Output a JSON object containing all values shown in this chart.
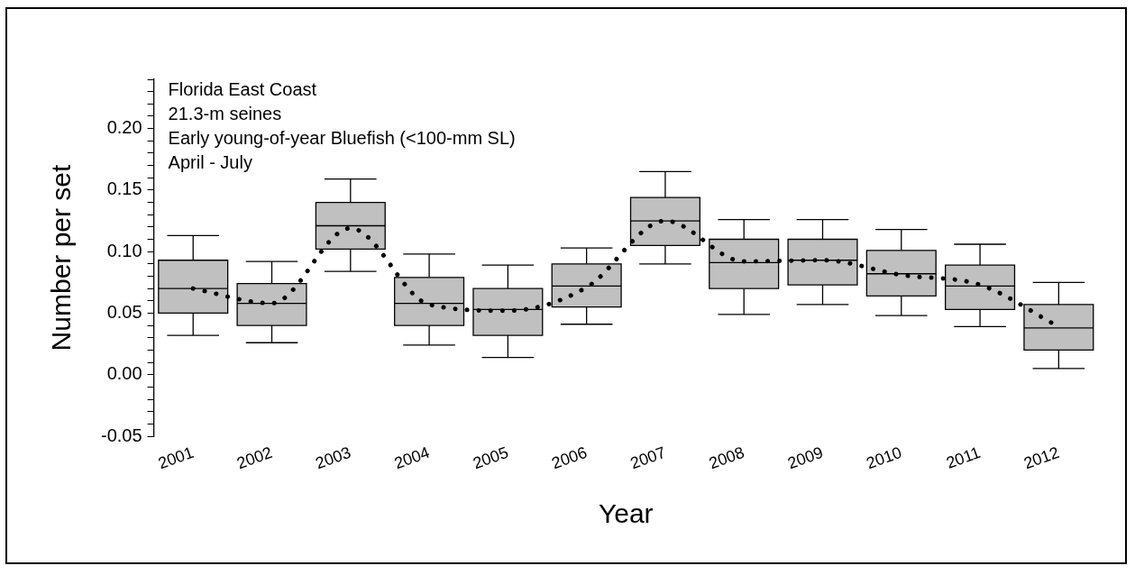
{
  "chart_data": {
    "type": "box",
    "xlabel": "Year",
    "ylabel": "Number per set",
    "annotations": [
      "Florida East Coast",
      "21.3-m seines",
      "Early young-of-year Bluefish (<100-mm SL)",
      "April - July"
    ],
    "categories": [
      "2001",
      "2002",
      "2003",
      "2004",
      "2005",
      "2006",
      "2007",
      "2008",
      "2009",
      "2010",
      "2011",
      "2012"
    ],
    "color": "#c0c0c0",
    "boxes": [
      {
        "low": 0.032,
        "q1": 0.05,
        "median": 0.07,
        "q3": 0.093,
        "high": 0.113
      },
      {
        "low": 0.026,
        "q1": 0.04,
        "median": 0.058,
        "q3": 0.074,
        "high": 0.092
      },
      {
        "low": 0.084,
        "q1": 0.102,
        "median": 0.121,
        "q3": 0.14,
        "high": 0.159
      },
      {
        "low": 0.024,
        "q1": 0.04,
        "median": 0.058,
        "q3": 0.079,
        "high": 0.098
      },
      {
        "low": 0.014,
        "q1": 0.032,
        "median": 0.053,
        "q3": 0.07,
        "high": 0.089
      },
      {
        "low": 0.041,
        "q1": 0.055,
        "median": 0.072,
        "q3": 0.09,
        "high": 0.103
      },
      {
        "low": 0.09,
        "q1": 0.105,
        "median": 0.125,
        "q3": 0.144,
        "high": 0.165
      },
      {
        "low": 0.049,
        "q1": 0.07,
        "median": 0.091,
        "q3": 0.11,
        "high": 0.126
      },
      {
        "low": 0.057,
        "q1": 0.073,
        "median": 0.093,
        "q3": 0.11,
        "high": 0.126
      },
      {
        "low": 0.048,
        "q1": 0.064,
        "median": 0.082,
        "q3": 0.101,
        "high": 0.118
      },
      {
        "low": 0.039,
        "q1": 0.053,
        "median": 0.072,
        "q3": 0.089,
        "high": 0.106
      },
      {
        "low": 0.005,
        "q1": 0.02,
        "median": 0.038,
        "q3": 0.057,
        "high": 0.075
      }
    ],
    "series": [
      {
        "type": "line",
        "color": "#000000",
        "line_style": "dotted",
        "marker": "none",
        "values": [
          0.07,
          0.058,
          0.119,
          0.057,
          0.052,
          0.071,
          0.125,
          0.092,
          0.093,
          0.081,
          0.073,
          0.039
        ]
      }
    ],
    "ylim": [
      -0.05,
      0.24
    ],
    "yticks": [
      {
        "value": -0.05,
        "label": "-0.05"
      },
      {
        "value": -0.04,
        "label": null
      },
      {
        "value": -0.03,
        "label": null
      },
      {
        "value": -0.02,
        "label": null
      },
      {
        "value": -0.01,
        "label": null
      },
      {
        "value": 0,
        "label": "0.00"
      },
      {
        "value": 0.01,
        "label": null
      },
      {
        "value": 0.02,
        "label": null
      },
      {
        "value": 0.03,
        "label": null
      },
      {
        "value": 0.04,
        "label": null
      },
      {
        "value": 0.05,
        "label": "0.05"
      },
      {
        "value": 0.06,
        "label": null
      },
      {
        "value": 0.07,
        "label": null
      },
      {
        "value": 0.08,
        "label": null
      },
      {
        "value": 0.09,
        "label": null
      },
      {
        "value": 0.1,
        "label": "0.10"
      },
      {
        "value": 0.11,
        "label": null
      },
      {
        "value": 0.12,
        "label": null
      },
      {
        "value": 0.13,
        "label": null
      },
      {
        "value": 0.14,
        "label": null
      },
      {
        "value": 0.15,
        "label": "0.15"
      },
      {
        "value": 0.16,
        "label": null
      },
      {
        "value": 0.17,
        "label": null
      },
      {
        "value": 0.18,
        "label": null
      },
      {
        "value": 0.19,
        "label": null
      },
      {
        "value": 0.2,
        "label": "0.20"
      },
      {
        "value": 0.21,
        "label": null
      },
      {
        "value": 0.22,
        "label": null
      },
      {
        "value": 0.23,
        "label": null
      },
      {
        "value": 0.24,
        "label": null
      }
    ],
    "grid": false,
    "legend": false
  }
}
